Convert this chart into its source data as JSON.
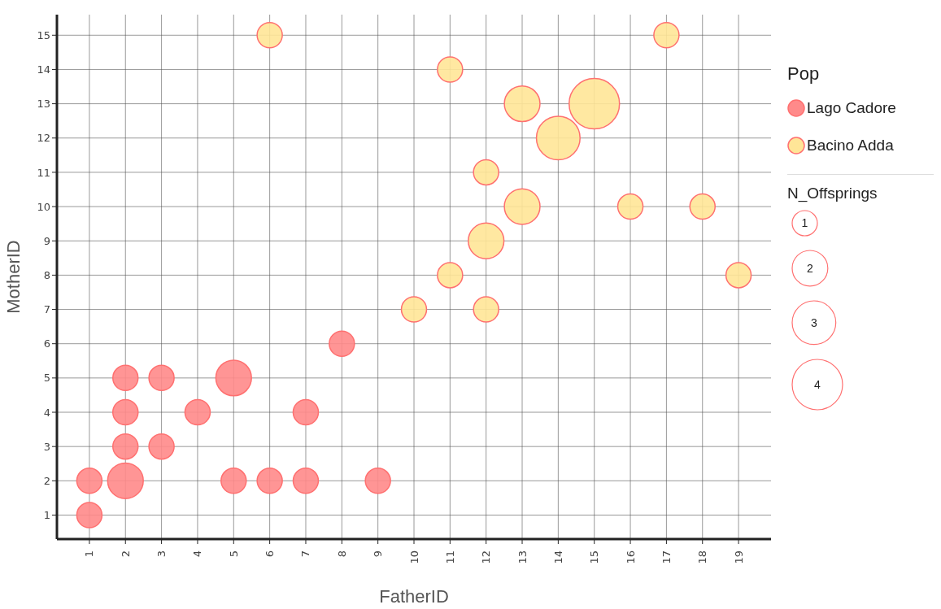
{
  "chart_data": {
    "type": "bubble",
    "xlabel": "FatherID",
    "ylabel": "MotherID",
    "legend_title": "Pop",
    "annotations": [
      "N_Offsprings"
    ],
    "xlim": [
      0.1,
      19.9
    ],
    "xticks": [
      1,
      2,
      3,
      4,
      5,
      6,
      7,
      8,
      9,
      10,
      11,
      12,
      13,
      14,
      15,
      16,
      17,
      18,
      19
    ],
    "ylim": [
      0.3,
      15.6
    ],
    "yticks": [
      1,
      2,
      3,
      4,
      5,
      6,
      7,
      8,
      9,
      10,
      11,
      12,
      13,
      14,
      15
    ],
    "grid": true,
    "legend": "right",
    "size_legend": [
      1,
      2,
      3,
      4
    ],
    "series": [
      {
        "name": "Lago Cadore",
        "color": "#ff8a8a",
        "x": [
          1,
          1,
          2,
          2,
          2,
          2,
          3,
          3,
          4,
          5,
          5,
          6,
          7,
          7,
          8,
          9
        ],
        "values": [
          1,
          2,
          2,
          3,
          4,
          5,
          3,
          5,
          4,
          5,
          2,
          2,
          2,
          4,
          6,
          2
        ],
        "sizes": [
          1,
          1,
          2,
          1,
          1,
          1,
          1,
          1,
          1,
          2,
          1,
          1,
          1,
          1,
          1,
          1
        ]
      },
      {
        "name": "Bacino Adda",
        "color": "#ffe597",
        "x": [
          6,
          11,
          13,
          15,
          14,
          12,
          13,
          16,
          18,
          12,
          11,
          19,
          10,
          12,
          17
        ],
        "values": [
          15,
          14,
          13,
          13,
          12,
          11,
          10,
          10,
          10,
          9,
          8,
          8,
          7,
          7,
          15
        ],
        "sizes": [
          1,
          1,
          2,
          4,
          3,
          1,
          2,
          1,
          1,
          2,
          1,
          1,
          1,
          1,
          1
        ]
      }
    ]
  }
}
